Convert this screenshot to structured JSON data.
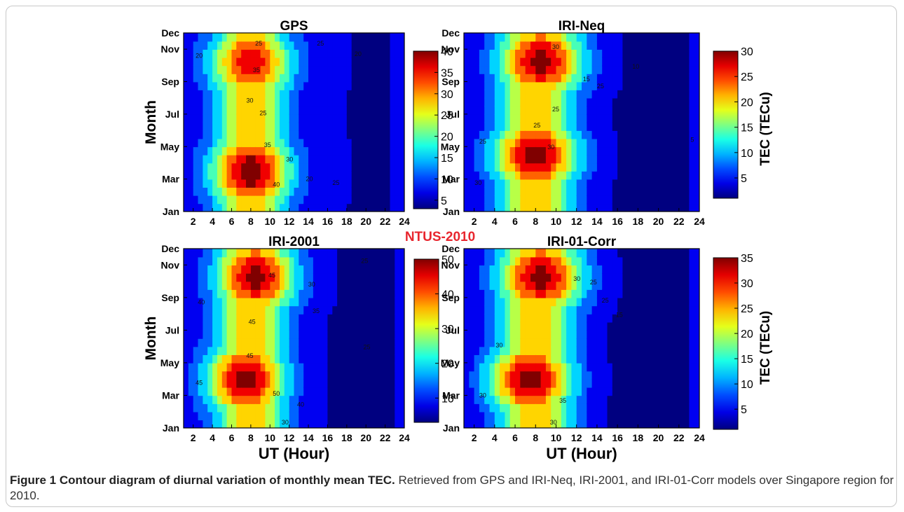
{
  "figure": {
    "label": "Figure 1",
    "title": "Contour diagram of diurnal variation of monthly mean TEC.",
    "description": "Retrieved from GPS and IRI-Neq, IRI-2001, and IRI-01-Corr models over Singapore region for 2010.",
    "station_label": "NTUS-2010",
    "station_color": "#e8262e"
  },
  "chart_data": [
    {
      "type": "heatmap",
      "title": "GPS",
      "xlabel": "",
      "ylabel": "Month",
      "x_ticks": [
        2,
        4,
        6,
        8,
        10,
        12,
        14,
        16,
        18,
        20,
        22,
        24
      ],
      "y_ticks": [
        "Jan",
        "Mar",
        "May",
        "Jul",
        "Sep",
        "Nov",
        "Dec"
      ],
      "xlim": [
        1,
        24
      ],
      "colorbar": {
        "min": 3,
        "max": 40,
        "ticks": [
          5,
          10,
          15,
          20,
          25,
          30,
          35,
          40
        ],
        "label": ""
      },
      "contour_labels": [
        "20",
        "35",
        "25",
        "25",
        "30",
        "25",
        "35",
        "30",
        "40",
        "20",
        "25",
        "20"
      ],
      "peaks": [
        {
          "x": 8,
          "month": 3.5,
          "value": 41
        },
        {
          "x": 8,
          "month": 10.2,
          "value": 37
        }
      ],
      "trough": {
        "x": 21,
        "value": 5
      }
    },
    {
      "type": "heatmap",
      "title": "IRI-Neq",
      "xlabel": "",
      "ylabel": "",
      "x_ticks": [
        2,
        4,
        6,
        8,
        10,
        12,
        14,
        16,
        18,
        20,
        22,
        24
      ],
      "y_ticks": [
        "Jan",
        "Mar",
        "May",
        "Jul",
        "Sep",
        "Nov",
        "Dec"
      ],
      "xlim": [
        1,
        24
      ],
      "colorbar": {
        "min": 1,
        "max": 30,
        "ticks": [
          5,
          10,
          15,
          20,
          25,
          30
        ],
        "label": "TEC (TECu)"
      },
      "contour_labels": [
        "30",
        "15",
        "10",
        "25",
        "25",
        "25",
        "25",
        "30",
        "30",
        "5"
      ],
      "peaks": [
        {
          "x": 8,
          "month": 4.5,
          "value": 30
        },
        {
          "x": 8.5,
          "month": 10.3,
          "value": 30
        }
      ],
      "trough": {
        "x": 21,
        "value": 2
      }
    },
    {
      "type": "heatmap",
      "title": "IRI-2001",
      "xlabel": "UT (Hour)",
      "ylabel": "Month",
      "x_ticks": [
        2,
        4,
        6,
        8,
        10,
        12,
        14,
        16,
        18,
        20,
        22,
        24
      ],
      "y_ticks": [
        "Jan",
        "Mar",
        "May",
        "Jul",
        "Sep",
        "Nov",
        "Dec"
      ],
      "xlim": [
        1,
        24
      ],
      "colorbar": {
        "min": 3,
        "max": 50,
        "ticks": [
          10,
          20,
          30,
          40,
          50
        ],
        "label": ""
      },
      "contour_labels": [
        "40",
        "45",
        "45",
        "45",
        "30",
        "35",
        "25",
        "25",
        "30",
        "45",
        "50",
        "40"
      ],
      "peaks": [
        {
          "x": 7.5,
          "month": 4,
          "value": 50
        },
        {
          "x": 8.5,
          "month": 10.3,
          "value": 50
        }
      ],
      "trough": {
        "x": 21,
        "value": 5
      }
    },
    {
      "type": "heatmap",
      "title": "IRI-01-Corr",
      "xlabel": "UT (Hour)",
      "ylabel": "",
      "x_ticks": [
        2,
        4,
        6,
        8,
        10,
        12,
        14,
        16,
        18,
        20,
        22,
        24
      ],
      "y_ticks": [
        "Jan",
        "Mar",
        "May",
        "Jul",
        "Sep",
        "Nov",
        "Dec"
      ],
      "xlim": [
        1,
        24
      ],
      "colorbar": {
        "min": 1,
        "max": 35,
        "ticks": [
          5,
          10,
          15,
          20,
          25,
          30,
          35
        ],
        "label": "TEC (TECu)"
      },
      "contour_labels": [
        "30",
        "25",
        "15",
        "25",
        "30",
        "30",
        "35",
        "30"
      ],
      "peaks": [
        {
          "x": 7.5,
          "month": 4,
          "value": 35
        },
        {
          "x": 8.5,
          "month": 10.3,
          "value": 35
        }
      ],
      "trough": {
        "x": 21,
        "value": 2
      }
    }
  ]
}
